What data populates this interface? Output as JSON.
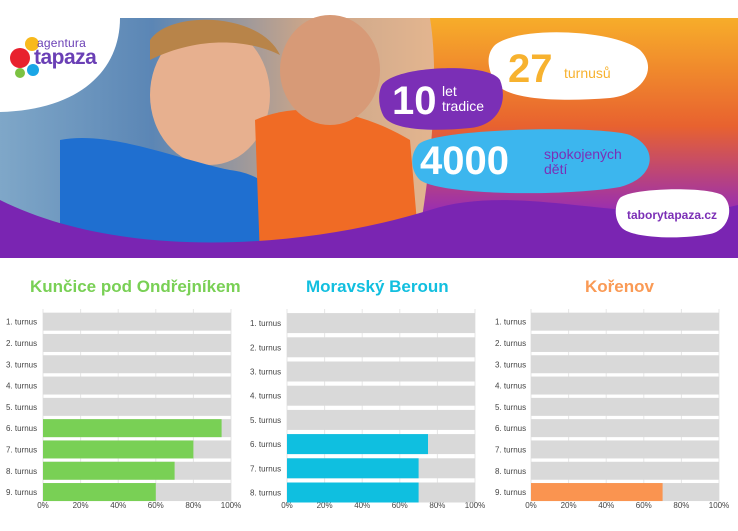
{
  "banner": {
    "logo": {
      "line1": "agentura",
      "line2": "tapaza"
    },
    "stat_turnusu": {
      "number": "27",
      "label": "turnusů"
    },
    "stat_tradice": {
      "number": "10",
      "label_line1": "let",
      "label_line2": "tradice"
    },
    "stat_deti": {
      "number": "4000",
      "label_line1": "spokojených",
      "label_line2": "dětí"
    },
    "website": "taborytapaza.cz",
    "colors": {
      "purple": "#7b2fb6",
      "orange": "#f7b22f",
      "blue": "#3cb6ee",
      "white": "#ffffff"
    }
  },
  "chart_data": [
    {
      "type": "bar",
      "orientation": "horizontal",
      "stacked_on_track": true,
      "title": "Kunčice pod Ondřejníkem",
      "title_color": "#79d055",
      "bar_color": "#79d055",
      "track_color": "#d9d9d9",
      "categories": [
        "1. turnus",
        "2. turnus",
        "3. turnus",
        "4. turnus",
        "5. turnus",
        "6. turnus",
        "7. turnus",
        "8. turnus",
        "9. turnus"
      ],
      "values": [
        0,
        0,
        0,
        0,
        0,
        95,
        80,
        70,
        60
      ],
      "xlim": [
        0,
        100
      ],
      "x_ticks": [
        "0%",
        "20%",
        "40%",
        "60%",
        "80%",
        "100%"
      ],
      "grid": true
    },
    {
      "type": "bar",
      "orientation": "horizontal",
      "stacked_on_track": true,
      "title": "Moravský Beroun",
      "title_color": "#12bfdf",
      "bar_color": "#0fbfe0",
      "track_color": "#d9d9d9",
      "categories": [
        "1. turnus",
        "2. turnus",
        "3. turnus",
        "4. turnus",
        "5. turnus",
        "6. turnus",
        "7. turnus",
        "8. turnus"
      ],
      "values": [
        0,
        0,
        0,
        0,
        0,
        75,
        70,
        70
      ],
      "xlim": [
        0,
        100
      ],
      "x_ticks": [
        "0%",
        "20%",
        "40%",
        "60%",
        "80%",
        "100%"
      ],
      "grid": true
    },
    {
      "type": "bar",
      "orientation": "horizontal",
      "stacked_on_track": true,
      "title": "Kořenov",
      "title_color": "#fa9a55",
      "bar_color": "#fa9450",
      "track_color": "#d9d9d9",
      "categories": [
        "1. turnus",
        "2. turnus",
        "3. turnus",
        "4. turnus",
        "5. turnus",
        "6. turnus",
        "7. turnus",
        "8. turnus",
        "9. turnus"
      ],
      "values": [
        0,
        0,
        0,
        0,
        0,
        0,
        0,
        0,
        70
      ],
      "xlim": [
        0,
        100
      ],
      "x_ticks": [
        "0%",
        "20%",
        "40%",
        "60%",
        "80%",
        "100%"
      ],
      "grid": true
    }
  ]
}
